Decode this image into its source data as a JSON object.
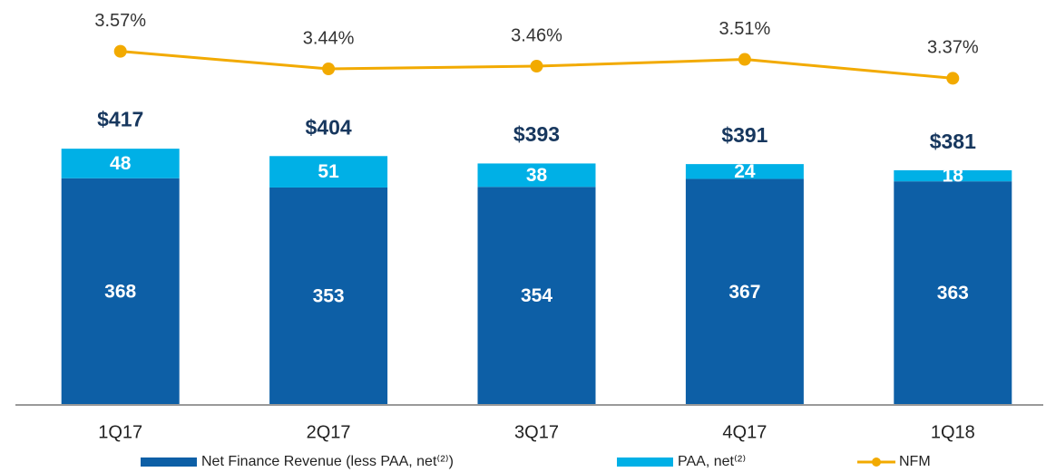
{
  "chart_data": {
    "type": "bar",
    "stacked": true,
    "categories": [
      "1Q17",
      "2Q17",
      "3Q17",
      "4Q17",
      "1Q18"
    ],
    "series": [
      {
        "name": "Net Finance Revenue (less PAA, net⁽²⁾)",
        "color": "#0d5fa6",
        "values": [
          368,
          353,
          354,
          367,
          363
        ]
      },
      {
        "name": "PAA, net⁽²⁾",
        "color": "#00b0e6",
        "values": [
          48,
          51,
          38,
          24,
          18
        ]
      },
      {
        "name": "NFM",
        "color": "#f2aa00",
        "type": "line",
        "axis": "y2",
        "values": [
          3.57,
          3.44,
          3.46,
          3.51,
          3.37
        ],
        "value_labels": [
          "3.57%",
          "3.44%",
          "3.46%",
          "3.51%",
          "3.37%"
        ]
      }
    ],
    "totals": [
      417,
      404,
      393,
      391,
      381
    ],
    "total_labels": [
      "$417",
      "$404",
      "$393",
      "$391",
      "$381"
    ],
    "ylim": [
      0,
      500
    ],
    "y2lim": [
      0.95,
      3.95
    ]
  }
}
